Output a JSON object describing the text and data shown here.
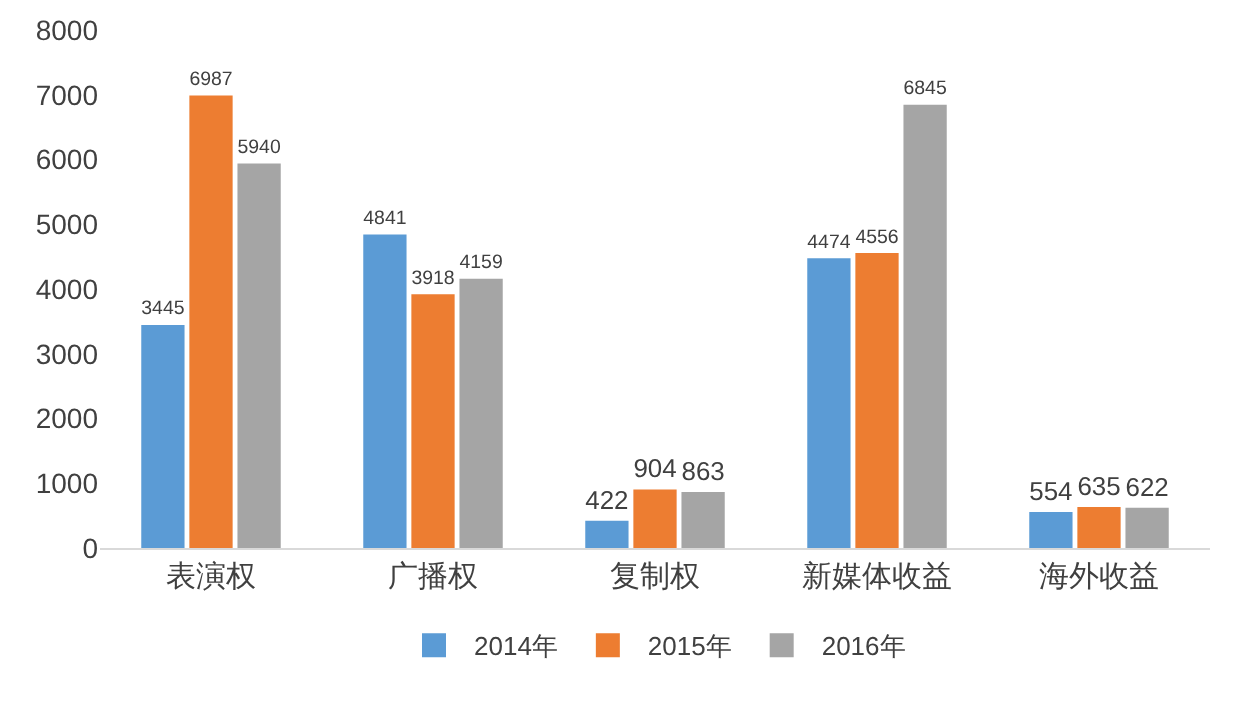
{
  "chart_data": {
    "type": "bar",
    "categories": [
      "表演权",
      "广播权",
      "复制权",
      "新媒体收益",
      "海外收益"
    ],
    "series": [
      {
        "name": "2014年",
        "color": "#5b9bd5",
        "values": [
          3445,
          4841,
          422,
          4474,
          554
        ]
      },
      {
        "name": "2015年",
        "color": "#ed7d31",
        "values": [
          6987,
          3918,
          904,
          4556,
          635
        ]
      },
      {
        "name": "2016年",
        "color": "#a5a5a5",
        "values": [
          5940,
          4159,
          863,
          6845,
          622
        ]
      }
    ],
    "ylim": [
      0,
      8000
    ],
    "yticks": [
      0,
      1000,
      2000,
      3000,
      4000,
      5000,
      6000,
      7000,
      8000
    ],
    "grid": false,
    "legend": "bottom",
    "data_labels": true
  }
}
